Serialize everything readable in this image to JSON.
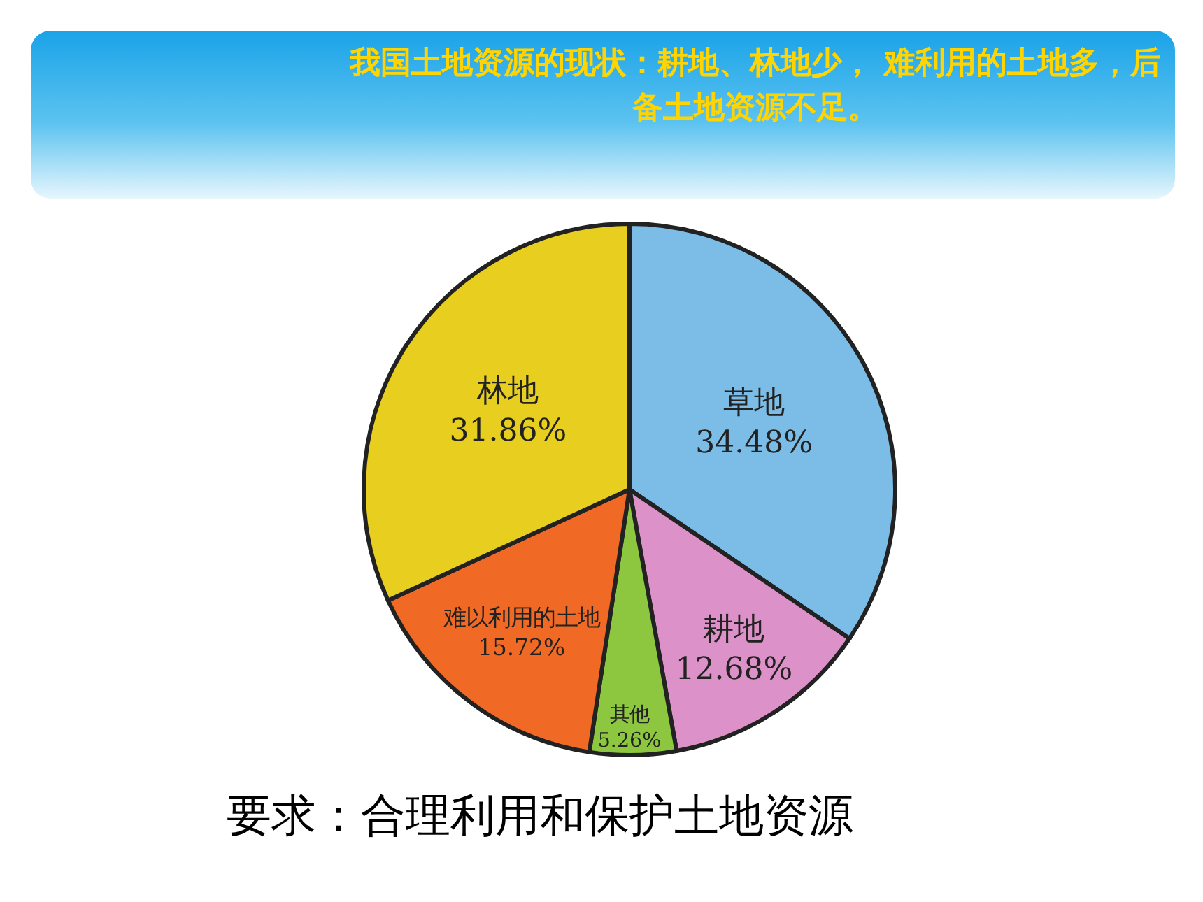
{
  "chart_data": {
    "type": "pie",
    "title": "我国土地资源的现状：耕地、林地少， 难利用的土地多，后备土地资源不足。",
    "categories": [
      "草地",
      "耕地",
      "其他",
      "难以利用的土地",
      "林地"
    ],
    "values": [
      34.48,
      12.68,
      5.26,
      15.72,
      31.86
    ],
    "value_labels": [
      "34.48%",
      "12.68%",
      "5.26%",
      "15.72%",
      "31.86%"
    ],
    "colors": [
      "#7cbde8",
      "#dc92c8",
      "#8dc63f",
      "#f06a25",
      "#e8cf1f"
    ],
    "legend": false,
    "annotations": [
      "要求：合理利用和保护土地资源"
    ]
  }
}
